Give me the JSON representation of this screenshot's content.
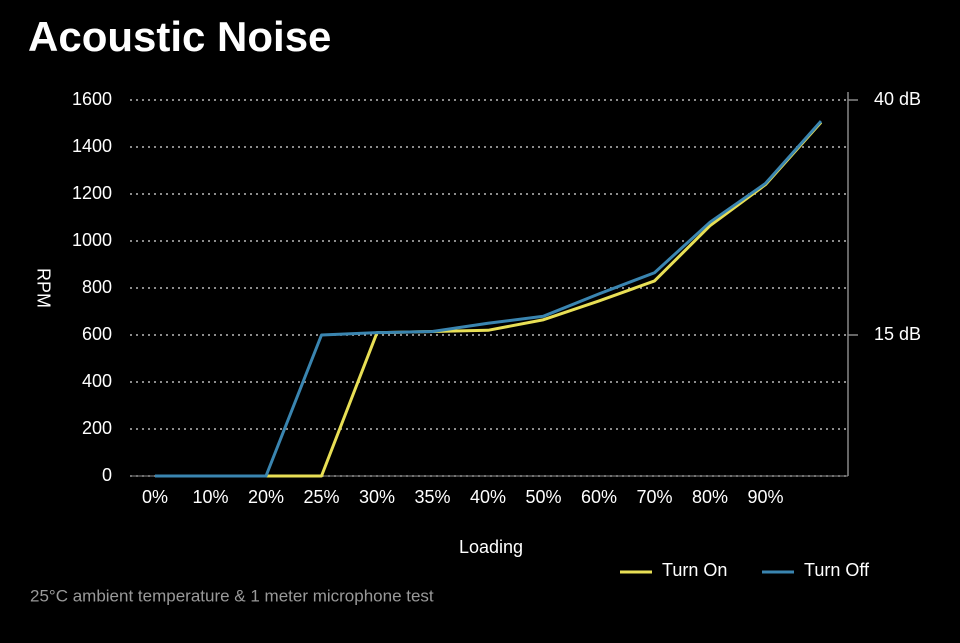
{
  "chart_data": {
    "type": "line",
    "title": "Acoustic Noise",
    "xlabel": "Loading",
    "ylabel": "RPM",
    "note": "25°C ambient temperature & 1 meter microphone test",
    "categories": [
      "0%",
      "10%",
      "20%",
      "25%",
      "30%",
      "35%",
      "40%",
      "50%",
      "60%",
      "70%",
      "80%",
      "90%",
      null
    ],
    "series": [
      {
        "name": "Turn On",
        "color": "#e8df55",
        "values": [
          0,
          0,
          0,
          0,
          610,
          615,
          620,
          665,
          745,
          830,
          1065,
          1240,
          1505
        ]
      },
      {
        "name": "Turn Off",
        "color": "#3a85b0",
        "values": [
          0,
          0,
          0,
          600,
          610,
          615,
          650,
          680,
          775,
          865,
          1080,
          1245,
          1510
        ]
      }
    ],
    "ylim": [
      0,
      1600
    ],
    "yticks": [
      0,
      200,
      400,
      600,
      800,
      1000,
      1200,
      1400,
      1600
    ],
    "y2lim": [
      0,
      40
    ],
    "y2ticks": [
      {
        "value": 15,
        "label": "15 dB"
      },
      {
        "value": 40,
        "label": "40 dB"
      }
    ],
    "grid": true,
    "legend": "bottom-right"
  }
}
